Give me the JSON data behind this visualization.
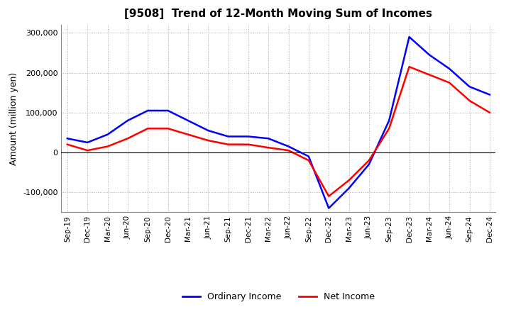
{
  "title": "[9508]  Trend of 12-Month Moving Sum of Incomes",
  "ylabel": "Amount (million yen)",
  "xlabels": [
    "Sep-19",
    "Dec-19",
    "Mar-20",
    "Jun-20",
    "Sep-20",
    "Dec-20",
    "Mar-21",
    "Jun-21",
    "Sep-21",
    "Dec-21",
    "Mar-22",
    "Jun-22",
    "Sep-22",
    "Dec-22",
    "Mar-23",
    "Jun-23",
    "Sep-23",
    "Dec-23",
    "Mar-24",
    "Jun-24",
    "Sep-24",
    "Dec-24"
  ],
  "ordinary_income": [
    35000,
    25000,
    45000,
    80000,
    105000,
    105000,
    80000,
    55000,
    40000,
    40000,
    35000,
    15000,
    -10000,
    -140000,
    -90000,
    -30000,
    80000,
    290000,
    245000,
    210000,
    165000,
    145000
  ],
  "net_income": [
    20000,
    5000,
    15000,
    35000,
    60000,
    60000,
    45000,
    30000,
    20000,
    20000,
    12000,
    5000,
    -20000,
    -110000,
    -70000,
    -20000,
    60000,
    215000,
    195000,
    175000,
    130000,
    100000
  ],
  "ordinary_color": "#0000ff",
  "net_color": "#ff0000",
  "ylim": [
    -150000,
    320000
  ],
  "yticks": [
    -100000,
    0,
    100000,
    200000,
    300000
  ],
  "grid_color": "#aaaaaa",
  "background_color": "#ffffff",
  "legend_labels": [
    "Ordinary Income",
    "Net Income"
  ]
}
